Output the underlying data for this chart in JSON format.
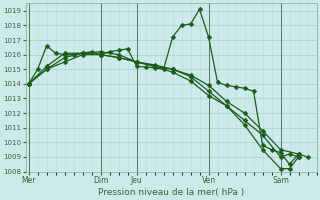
{
  "xlabel": "Pression niveau de la mer( hPa )",
  "background_color": "#cceaea",
  "grid_color_major": "#aacece",
  "grid_color_minor": "#bbdada",
  "line_color": "#1a5c1a",
  "ylim": [
    1008,
    1019.5
  ],
  "ytick_min": 1008,
  "ytick_max": 1019,
  "xtick_labels": [
    "Mer",
    "Dim",
    "Jeu",
    "Ven",
    "Sam"
  ],
  "xtick_positions": [
    0,
    24,
    36,
    60,
    84
  ],
  "vline_positions": [
    0,
    24,
    36,
    60,
    84
  ],
  "total_points": 96,
  "series": [
    {
      "points": [
        [
          0,
          1014.0
        ],
        [
          3,
          1015.0
        ],
        [
          6,
          1016.6
        ],
        [
          9,
          1016.1
        ],
        [
          12,
          1016.0
        ],
        [
          15,
          1016.0
        ],
        [
          18,
          1016.1
        ],
        [
          21,
          1016.2
        ],
        [
          24,
          1016.0
        ],
        [
          27,
          1016.2
        ],
        [
          30,
          1016.3
        ],
        [
          33,
          1016.4
        ],
        [
          36,
          1015.2
        ],
        [
          39,
          1015.15
        ],
        [
          42,
          1015.1
        ],
        [
          45,
          1015.0
        ],
        [
          48,
          1017.2
        ],
        [
          51,
          1018.0
        ],
        [
          54,
          1018.1
        ],
        [
          57,
          1019.1
        ],
        [
          60,
          1017.2
        ],
        [
          63,
          1014.1
        ],
        [
          66,
          1013.9
        ],
        [
          69,
          1013.8
        ],
        [
          72,
          1013.7
        ],
        [
          75,
          1013.5
        ],
        [
          78,
          1009.8
        ],
        [
          81,
          1009.5
        ],
        [
          84,
          1009.3
        ],
        [
          87,
          1008.5
        ],
        [
          90,
          1009.2
        ],
        [
          93,
          1009.0
        ]
      ]
    },
    {
      "points": [
        [
          0,
          1014.0
        ],
        [
          6,
          1015.0
        ],
        [
          12,
          1015.5
        ],
        [
          18,
          1016.0
        ],
        [
          24,
          1016.0
        ],
        [
          30,
          1015.8
        ],
        [
          36,
          1015.5
        ],
        [
          42,
          1015.3
        ],
        [
          48,
          1015.0
        ],
        [
          54,
          1014.6
        ],
        [
          60,
          1013.9
        ],
        [
          66,
          1012.8
        ],
        [
          72,
          1012.0
        ],
        [
          78,
          1010.8
        ],
        [
          84,
          1009.5
        ],
        [
          90,
          1009.2
        ]
      ]
    },
    {
      "points": [
        [
          0,
          1014.0
        ],
        [
          6,
          1015.0
        ],
        [
          12,
          1015.8
        ],
        [
          18,
          1016.1
        ],
        [
          24,
          1016.2
        ],
        [
          30,
          1016.0
        ],
        [
          36,
          1015.5
        ],
        [
          42,
          1015.2
        ],
        [
          48,
          1015.0
        ],
        [
          54,
          1014.5
        ],
        [
          60,
          1013.5
        ],
        [
          66,
          1012.5
        ],
        [
          72,
          1011.5
        ],
        [
          78,
          1010.5
        ],
        [
          84,
          1009.0
        ],
        [
          87,
          1009.2
        ],
        [
          90,
          1009.0
        ]
      ]
    },
    {
      "points": [
        [
          0,
          1014.0
        ],
        [
          6,
          1015.2
        ],
        [
          12,
          1016.1
        ],
        [
          18,
          1016.1
        ],
        [
          24,
          1016.0
        ],
        [
          30,
          1015.8
        ],
        [
          36,
          1015.5
        ],
        [
          42,
          1015.2
        ],
        [
          48,
          1014.8
        ],
        [
          54,
          1014.2
        ],
        [
          60,
          1013.2
        ],
        [
          66,
          1012.5
        ],
        [
          72,
          1011.2
        ],
        [
          78,
          1009.5
        ],
        [
          84,
          1008.2
        ],
        [
          87,
          1008.2
        ],
        [
          90,
          1009.0
        ]
      ]
    }
  ],
  "marker_size": 2.5,
  "line_width": 0.9
}
